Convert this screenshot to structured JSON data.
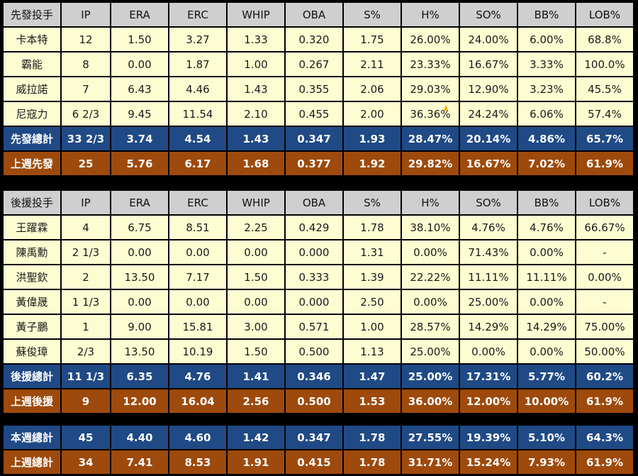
{
  "columns": [
    "IP",
    "ERA",
    "ERC",
    "WHIP",
    "OBA",
    "S%",
    "H%",
    "SO%",
    "BB%",
    "LOB%"
  ],
  "starters": {
    "header_label": "先發投手",
    "rows": [
      {
        "name": "卡本特",
        "vals": [
          "12",
          "1.50",
          "3.27",
          "1.33",
          "0.320",
          "1.75",
          "26.00%",
          "24.00%",
          "6.00%",
          "68.8%"
        ]
      },
      {
        "name": "霸能",
        "vals": [
          "8",
          "0.00",
          "1.87",
          "1.00",
          "0.267",
          "2.11",
          "23.33%",
          "16.67%",
          "3.33%",
          "100.0%"
        ]
      },
      {
        "name": "威拉諾",
        "vals": [
          "7",
          "6.43",
          "4.46",
          "1.43",
          "0.355",
          "2.06",
          "29.03%",
          "12.90%",
          "3.23%",
          "45.5%"
        ]
      },
      {
        "name": "尼寇力",
        "vals": [
          "6 2/3",
          "9.45",
          "11.54",
          "2.10",
          "0.455",
          "2.00",
          "36.36%",
          "24.24%",
          "6.06%",
          "57.4%"
        ]
      }
    ],
    "total": {
      "name": "先發總計",
      "vals": [
        "33 2/3",
        "3.74",
        "4.54",
        "1.43",
        "0.347",
        "1.93",
        "28.47%",
        "20.14%",
        "4.86%",
        "65.7%"
      ]
    },
    "last_week": {
      "name": "上週先發",
      "vals": [
        "25",
        "5.76",
        "6.17",
        "1.68",
        "0.377",
        "1.92",
        "29.82%",
        "16.67%",
        "7.02%",
        "61.9%"
      ]
    }
  },
  "relievers": {
    "header_label": "後援投手",
    "rows": [
      {
        "name": "王躍霖",
        "vals": [
          "4",
          "6.75",
          "8.51",
          "2.25",
          "0.429",
          "1.78",
          "38.10%",
          "4.76%",
          "4.76%",
          "66.67%"
        ]
      },
      {
        "name": "陳禹勳",
        "vals": [
          "2 1/3",
          "0.00",
          "0.00",
          "0.00",
          "0.000",
          "1.31",
          "0.00%",
          "71.43%",
          "0.00%",
          "-"
        ]
      },
      {
        "name": "洪聖欽",
        "vals": [
          "2",
          "13.50",
          "7.17",
          "1.50",
          "0.333",
          "1.39",
          "22.22%",
          "11.11%",
          "11.11%",
          "0.00%"
        ]
      },
      {
        "name": "黃偉晟",
        "vals": [
          "1 1/3",
          "0.00",
          "0.00",
          "0.00",
          "0.000",
          "2.50",
          "0.00%",
          "25.00%",
          "0.00%",
          "-"
        ]
      },
      {
        "name": "黃子鵬",
        "vals": [
          "1",
          "9.00",
          "15.81",
          "3.00",
          "0.571",
          "1.00",
          "28.57%",
          "14.29%",
          "14.29%",
          "75.00%"
        ]
      },
      {
        "name": "蘇俊璋",
        "vals": [
          "2/3",
          "13.50",
          "10.19",
          "1.50",
          "0.500",
          "1.13",
          "25.00%",
          "0.00%",
          "0.00%",
          "50.00%"
        ]
      }
    ],
    "total": {
      "name": "後援總計",
      "vals": [
        "11 1/3",
        "6.35",
        "4.76",
        "1.41",
        "0.346",
        "1.47",
        "25.00%",
        "17.31%",
        "5.77%",
        "60.2%"
      ]
    },
    "last_week": {
      "name": "上週後援",
      "vals": [
        "9",
        "12.00",
        "16.04",
        "2.56",
        "0.500",
        "1.53",
        "36.00%",
        "12.00%",
        "10.00%",
        "61.9%"
      ]
    }
  },
  "overall": {
    "this_week": {
      "name": "本週總計",
      "vals": [
        "45",
        "4.40",
        "4.60",
        "1.42",
        "0.347",
        "1.78",
        "27.55%",
        "19.39%",
        "5.10%",
        "64.3%"
      ]
    },
    "last_week": {
      "name": "上週總計",
      "vals": [
        "34",
        "7.41",
        "8.53",
        "1.91",
        "0.415",
        "1.78",
        "31.71%",
        "15.24%",
        "7.93%",
        "61.9%"
      ]
    }
  }
}
